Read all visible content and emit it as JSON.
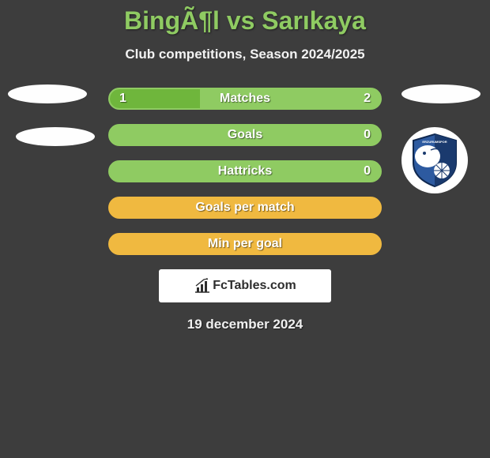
{
  "title": "BingÃ¶l vs Sarıkaya",
  "subtitle": "Club competitions, Season 2024/2025",
  "date": "19 december 2024",
  "footer_brand": "FcTables.com",
  "colors": {
    "background": "#3d3d3d",
    "title": "#8fcb62",
    "text": "#f2f2f2",
    "bar_green_fill": "#6fb63c",
    "bar_green_border": "#8fcb62",
    "bar_orange_fill": "#e0a730",
    "bar_orange_border": "#f0b940",
    "white": "#ffffff",
    "logo_shield_dark": "#1a3a6e",
    "logo_shield_mid": "#2d5aa0"
  },
  "bars": [
    {
      "label": "Matches",
      "left": "1",
      "right": "2",
      "leftPct": 33.3,
      "scheme": "green",
      "showValues": true
    },
    {
      "label": "Goals",
      "left": "",
      "right": "0",
      "leftPct": 0,
      "scheme": "green",
      "showValues": true
    },
    {
      "label": "Hattricks",
      "left": "",
      "right": "0",
      "leftPct": 0,
      "scheme": "green",
      "showValues": true
    },
    {
      "label": "Goals per match",
      "left": "",
      "right": "",
      "leftPct": 0,
      "scheme": "orange",
      "showValues": false
    },
    {
      "label": "Min per goal",
      "left": "",
      "right": "",
      "leftPct": 0,
      "scheme": "orange",
      "showValues": false
    }
  ]
}
